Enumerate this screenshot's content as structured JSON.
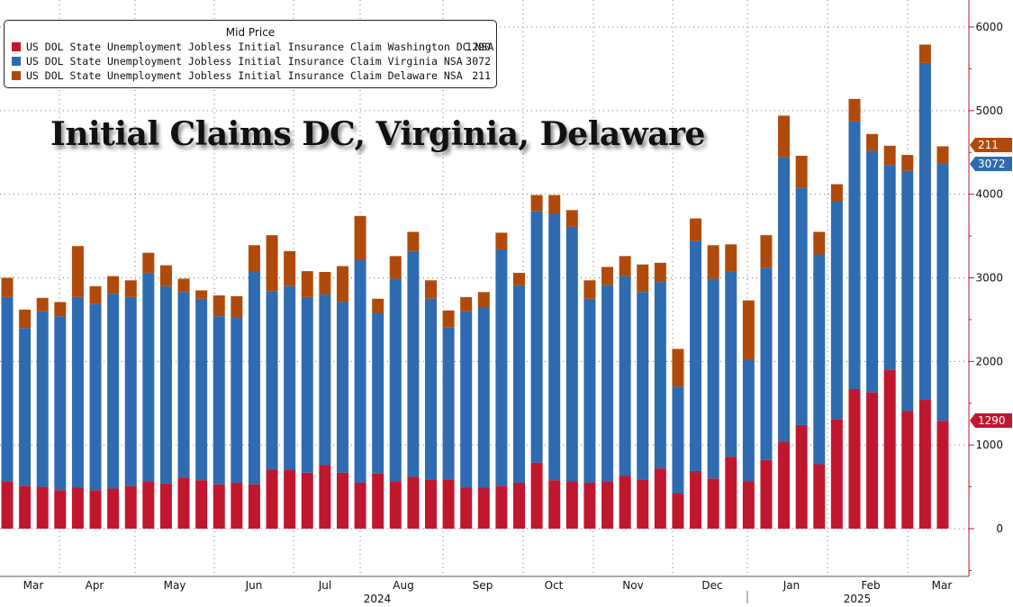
{
  "chart_data": {
    "type": "bar",
    "stacked": true,
    "title": "Initial Claims DC, Virginia, Delaware",
    "legend": {
      "title": "Mid Price",
      "placement": "top-left"
    },
    "series": [
      {
        "name": "US DOL State Unemployment Jobless Initial Insurance Claim Washington DC NSA",
        "last_value": "1290",
        "color": "#c0172f",
        "values": [
          560,
          510,
          500,
          460,
          490,
          460,
          480,
          510,
          560,
          540,
          610,
          580,
          530,
          550,
          530,
          710,
          700,
          670,
          760,
          670,
          550,
          660,
          560,
          620,
          590,
          590,
          490,
          490,
          510,
          550,
          790,
          580,
          570,
          550,
          560,
          630,
          590,
          720,
          420,
          690,
          600,
          860,
          570,
          820,
          1040,
          1240,
          770,
          1310,
          1670,
          1630,
          1900,
          1410,
          1540,
          1290
        ]
      },
      {
        "name": "US DOL State Unemployment Jobless Initial Insurance Claim Virginia NSA",
        "last_value": "3072",
        "color": "#2e6bb0",
        "values": [
          2210,
          1890,
          2100,
          2080,
          2280,
          2230,
          2330,
          2260,
          2500,
          2360,
          2220,
          2170,
          2010,
          1970,
          2540,
          2130,
          2200,
          2100,
          2040,
          2040,
          2660,
          1920,
          2430,
          2700,
          2160,
          1820,
          2110,
          2160,
          2830,
          2360,
          3010,
          3190,
          3040,
          2200,
          2350,
          2390,
          2240,
          2230,
          1280,
          2750,
          2390,
          2220,
          1450,
          2300,
          3400,
          2840,
          2510,
          2600,
          3200,
          2890,
          2450,
          2870,
          4030,
          3072
        ]
      },
      {
        "name": "US DOL State Unemployment Jobless Initial Insurance Claim Delaware NSA",
        "last_value": "211",
        "color": "#b04a0a",
        "values": [
          230,
          220,
          160,
          170,
          610,
          210,
          210,
          200,
          240,
          250,
          160,
          100,
          250,
          260,
          320,
          670,
          420,
          310,
          270,
          430,
          530,
          170,
          270,
          230,
          220,
          200,
          170,
          180,
          200,
          150,
          190,
          220,
          200,
          220,
          220,
          240,
          330,
          230,
          450,
          270,
          400,
          320,
          710,
          390,
          500,
          380,
          270,
          210,
          270,
          200,
          230,
          190,
          220,
          211
        ]
      }
    ],
    "x_axis": {
      "months": [
        "Mar",
        "Apr",
        "May",
        "Jun",
        "Jul",
        "Aug",
        "Sep",
        "Oct",
        "Nov",
        "Dec",
        "Jan",
        "Feb",
        "Mar"
      ],
      "years": [
        "2024",
        "2025"
      ]
    },
    "y_axis": {
      "ticks": [
        "0",
        "1000",
        "2000",
        "3000",
        "4000",
        "5000",
        "6000"
      ],
      "ylim": [
        -500,
        6300
      ],
      "position": "right"
    },
    "grid": true
  }
}
